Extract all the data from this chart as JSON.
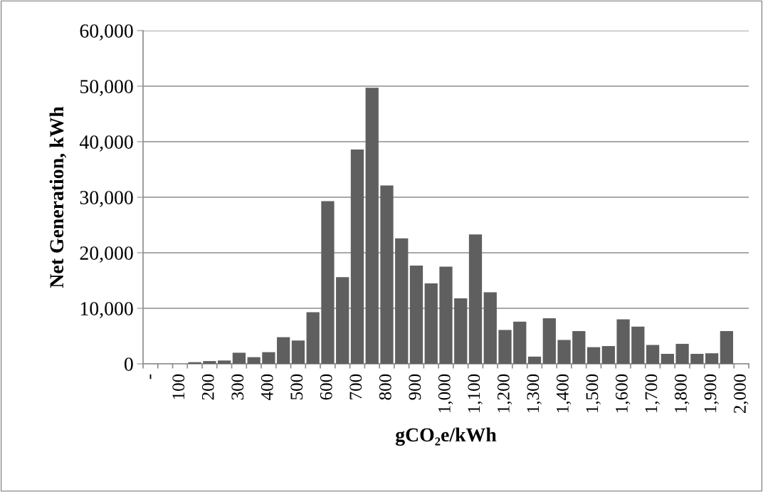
{
  "chart_data": {
    "type": "bar",
    "xlabel": "gCO₂e/kWh",
    "ylabel": "Net Generation, kWh",
    "categories": [
      "-",
      null,
      "100",
      null,
      "200",
      null,
      "300",
      null,
      "400",
      null,
      "500",
      null,
      "600",
      null,
      "700",
      null,
      "800",
      null,
      "900",
      null,
      "1,000",
      null,
      "1,100",
      null,
      "1,200",
      null,
      "1,300",
      null,
      "1,400",
      null,
      "1,500",
      null,
      "1,600",
      null,
      "1,700",
      null,
      "1,800",
      null,
      "1,900",
      null,
      "2,000"
    ],
    "values": [
      0,
      0,
      0,
      300,
      500,
      600,
      2000,
      1200,
      2100,
      4800,
      4200,
      9300,
      29300,
      15600,
      38600,
      49700,
      32100,
      22600,
      17700,
      14500,
      17500,
      11800,
      23300,
      12900,
      6100,
      7600,
      1300,
      8200,
      4300,
      5900,
      3000,
      3200,
      8000,
      6700,
      3400,
      1800,
      3600,
      1800,
      1900,
      5900,
      0
    ],
    "color": "#5f5f5f",
    "ylim": [
      0,
      60000
    ],
    "yticks": [
      0,
      {
        "value": 10000,
        "label": "10,000"
      },
      {
        "value": 20000,
        "label": "20,000"
      },
      {
        "value": 30000,
        "label": "30,000"
      },
      {
        "value": 40000,
        "label": "40,000"
      },
      {
        "value": 50000,
        "label": "50,000"
      },
      {
        "value": 60000,
        "label": "60,000"
      }
    ],
    "grid": "y",
    "legend": false
  }
}
